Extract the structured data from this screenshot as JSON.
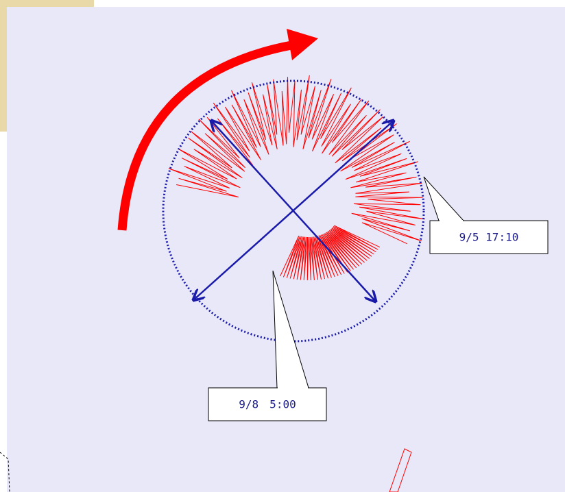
{
  "callouts": [
    {
      "label": "9/5 17:10"
    },
    {
      "label": "9/8　5:00"
    }
  ]
}
